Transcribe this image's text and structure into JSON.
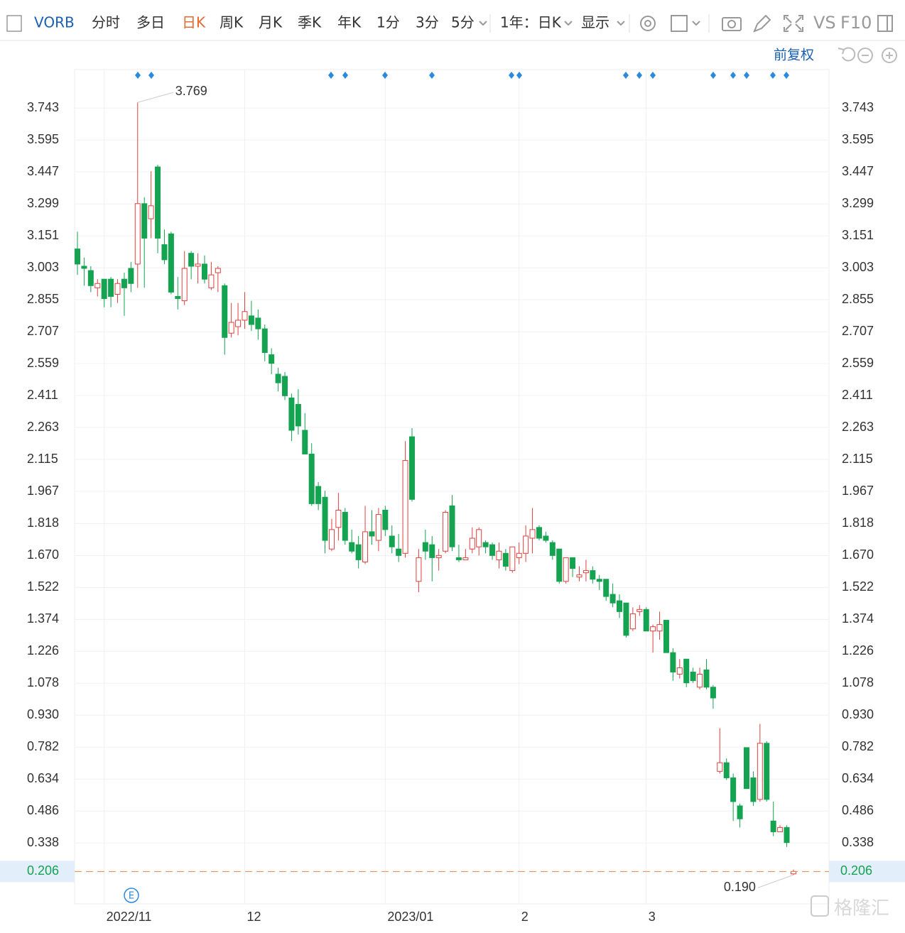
{
  "toolbar": {
    "symbol": "VORB",
    "tabs": [
      "分时",
      "多日",
      "日K",
      "周K",
      "月K",
      "季K",
      "年K",
      "1分",
      "3分",
      "5分"
    ],
    "active_tab": 2,
    "period": "1年：日K",
    "display": "显示",
    "vs": "VS",
    "f10": "F10"
  },
  "adjust": "前复权",
  "watermark": "格隆汇",
  "chart_data": {
    "type": "candlestick",
    "categories": [
      null,
      null,
      null,
      null,
      "2022/11",
      null,
      null,
      null,
      null,
      null,
      null,
      null,
      null,
      null,
      null,
      null,
      null,
      null,
      null,
      null,
      null,
      null,
      null,
      null,
      null,
      "12",
      null,
      null,
      null,
      null,
      null,
      null,
      null,
      null,
      null,
      null,
      null,
      null,
      null,
      null,
      null,
      null,
      null,
      null,
      null,
      null,
      "2023/01",
      null,
      null,
      null,
      null,
      null,
      null,
      null,
      null,
      null,
      null,
      null,
      null,
      null,
      null,
      null,
      null,
      null,
      null,
      null,
      "2",
      null,
      null,
      null,
      null,
      null,
      null,
      null,
      null,
      null,
      null,
      null,
      null,
      null,
      null,
      null,
      null,
      null,
      null,
      "3",
      null,
      null,
      null,
      null,
      null,
      null,
      null,
      null,
      null,
      null,
      null,
      null,
      null,
      null,
      null,
      null,
      null,
      null,
      null,
      null,
      null,
      null
    ],
    "open": [
      3.09,
      3.01,
      2.99,
      2.91,
      2.95,
      2.95,
      2.88,
      2.95,
      3.0,
      3.02,
      3.3,
      3.23,
      3.47,
      3.11,
      3.16,
      2.87,
      2.85,
      3.07,
      3.01,
      3.02,
      2.91,
      2.98,
      2.92,
      2.7,
      2.73,
      2.76,
      2.78,
      2.77,
      2.72,
      2.6,
      2.51,
      2.5,
      2.4,
      2.37,
      2.25,
      2.14,
      1.99,
      1.94,
      1.7,
      1.8,
      1.87,
      1.73,
      1.72,
      1.64,
      1.78,
      1.74,
      1.88,
      1.76,
      1.7,
      1.68,
      2.22,
      1.55,
      1.73,
      1.72,
      1.66,
      1.69,
      1.9,
      1.66,
      1.65,
      1.7,
      1.71,
      1.73,
      1.72,
      1.65,
      1.68,
      1.6,
      1.66,
      1.68,
      1.75,
      1.8,
      1.76,
      1.73,
      1.7,
      1.55,
      1.66,
      1.57,
      1.59,
      1.6,
      1.56,
      1.56,
      1.49,
      1.46,
      1.45,
      1.33,
      1.41,
      1.42,
      1.32,
      1.32,
      1.37,
      1.22,
      1.12,
      1.19,
      1.13,
      1.06,
      1.14,
      1.06,
      0.67,
      0.71,
      0.64,
      0.51,
      0.78,
      0.64,
      0.54,
      0.8,
      0.44,
      0.39,
      0.41,
      0.195
    ],
    "high": [
      3.17,
      3.05,
      3.01,
      2.95,
      2.95,
      2.96,
      2.95,
      2.98,
      3.03,
      3.769,
      3.33,
      3.45,
      3.48,
      3.18,
      3.17,
      2.96,
      3.08,
      3.08,
      3.07,
      3.06,
      3.03,
      3.01,
      2.93,
      2.84,
      2.84,
      2.89,
      2.85,
      2.81,
      2.74,
      2.63,
      2.54,
      2.52,
      2.42,
      2.44,
      2.33,
      2.19,
      2.01,
      1.97,
      1.84,
      1.96,
      1.89,
      1.79,
      1.76,
      1.9,
      1.88,
      1.89,
      1.9,
      1.81,
      1.77,
      2.2,
      2.26,
      1.7,
      1.79,
      1.76,
      1.7,
      1.88,
      1.95,
      1.72,
      1.7,
      1.8,
      1.8,
      1.74,
      1.73,
      1.73,
      1.7,
      1.71,
      1.73,
      1.81,
      1.89,
      1.81,
      1.78,
      1.74,
      1.7,
      1.66,
      1.66,
      1.62,
      1.65,
      1.62,
      1.58,
      1.56,
      1.54,
      1.49,
      1.45,
      1.43,
      1.44,
      1.43,
      1.35,
      1.41,
      1.37,
      1.24,
      1.19,
      1.19,
      1.15,
      1.15,
      1.19,
      1.07,
      0.87,
      0.73,
      0.66,
      0.52,
      0.78,
      0.67,
      0.89,
      0.81,
      0.53,
      0.42,
      0.42,
      0.215
    ],
    "low": [
      2.97,
      2.92,
      2.89,
      2.87,
      2.82,
      2.82,
      2.84,
      2.78,
      2.89,
      2.91,
      2.91,
      3.14,
      3.07,
      3.02,
      2.88,
      2.81,
      2.83,
      2.95,
      2.93,
      2.93,
      2.9,
      2.89,
      2.6,
      2.68,
      2.69,
      2.72,
      2.71,
      2.67,
      2.57,
      2.51,
      2.43,
      2.39,
      2.2,
      2.23,
      2.14,
      1.9,
      1.88,
      1.68,
      1.69,
      1.74,
      1.72,
      1.68,
      1.61,
      1.63,
      1.72,
      1.69,
      1.76,
      1.68,
      1.64,
      1.66,
      1.92,
      1.5,
      1.65,
      1.55,
      1.6,
      1.68,
      1.69,
      1.64,
      1.65,
      1.68,
      1.67,
      1.68,
      1.65,
      1.61,
      1.6,
      1.59,
      1.63,
      1.64,
      1.68,
      1.74,
      1.73,
      1.65,
      1.54,
      1.54,
      1.57,
      1.55,
      1.55,
      1.54,
      1.51,
      1.46,
      1.43,
      1.38,
      1.29,
      1.32,
      1.39,
      1.32,
      1.22,
      1.28,
      1.22,
      1.09,
      1.1,
      1.06,
      1.08,
      1.05,
      1.05,
      0.96,
      0.66,
      0.63,
      0.44,
      0.41,
      0.59,
      0.51,
      0.53,
      0.53,
      0.37,
      0.39,
      0.32,
      0.19
    ],
    "close": [
      3.02,
      3.0,
      2.92,
      2.93,
      2.86,
      2.87,
      2.93,
      2.91,
      2.93,
      3.3,
      3.14,
      3.29,
      3.14,
      3.04,
      2.89,
      2.86,
      3.0,
      3.01,
      3.02,
      2.95,
      2.97,
      3.0,
      2.68,
      2.75,
      2.76,
      2.8,
      2.74,
      2.72,
      2.61,
      2.56,
      2.47,
      2.41,
      2.25,
      2.27,
      2.14,
      1.91,
      1.91,
      1.74,
      1.79,
      1.88,
      1.74,
      1.69,
      1.65,
      1.78,
      1.76,
      1.86,
      1.79,
      1.71,
      1.67,
      2.11,
      1.93,
      1.66,
      1.69,
      1.66,
      1.67,
      1.87,
      1.71,
      1.65,
      1.66,
      1.75,
      1.79,
      1.71,
      1.67,
      1.69,
      1.62,
      1.71,
      1.68,
      1.76,
      1.79,
      1.75,
      1.74,
      1.67,
      1.55,
      1.66,
      1.61,
      1.58,
      1.6,
      1.56,
      1.55,
      1.48,
      1.45,
      1.41,
      1.3,
      1.4,
      1.42,
      1.32,
      1.34,
      1.35,
      1.22,
      1.13,
      1.15,
      1.08,
      1.09,
      1.12,
      1.06,
      1.01,
      0.71,
      0.64,
      0.53,
      0.45,
      0.59,
      0.53,
      0.8,
      0.54,
      0.39,
      0.41,
      0.34,
      0.206
    ],
    "annotations": [
      {
        "value": 3.769,
        "label": "3.769"
      },
      {
        "value": 0.19,
        "label": "0.190"
      }
    ],
    "up_color": "#e0403e",
    "down_color": "#14a350",
    "last_price_color": "#e8884a",
    "ylim": [
      0.056,
      3.921
    ],
    "yticks": [
      0.338,
      0.486,
      0.634,
      0.782,
      {
        "value": 0.93,
        "label": "0.930"
      },
      1.078,
      1.226,
      1.374,
      1.522,
      {
        "value": 1.67,
        "label": "1.670"
      },
      1.818,
      1.967,
      2.115,
      2.263,
      2.411,
      2.559,
      2.707,
      2.855,
      3.003,
      3.151,
      3.299,
      3.447,
      3.595,
      3.743
    ],
    "grid": true
  }
}
